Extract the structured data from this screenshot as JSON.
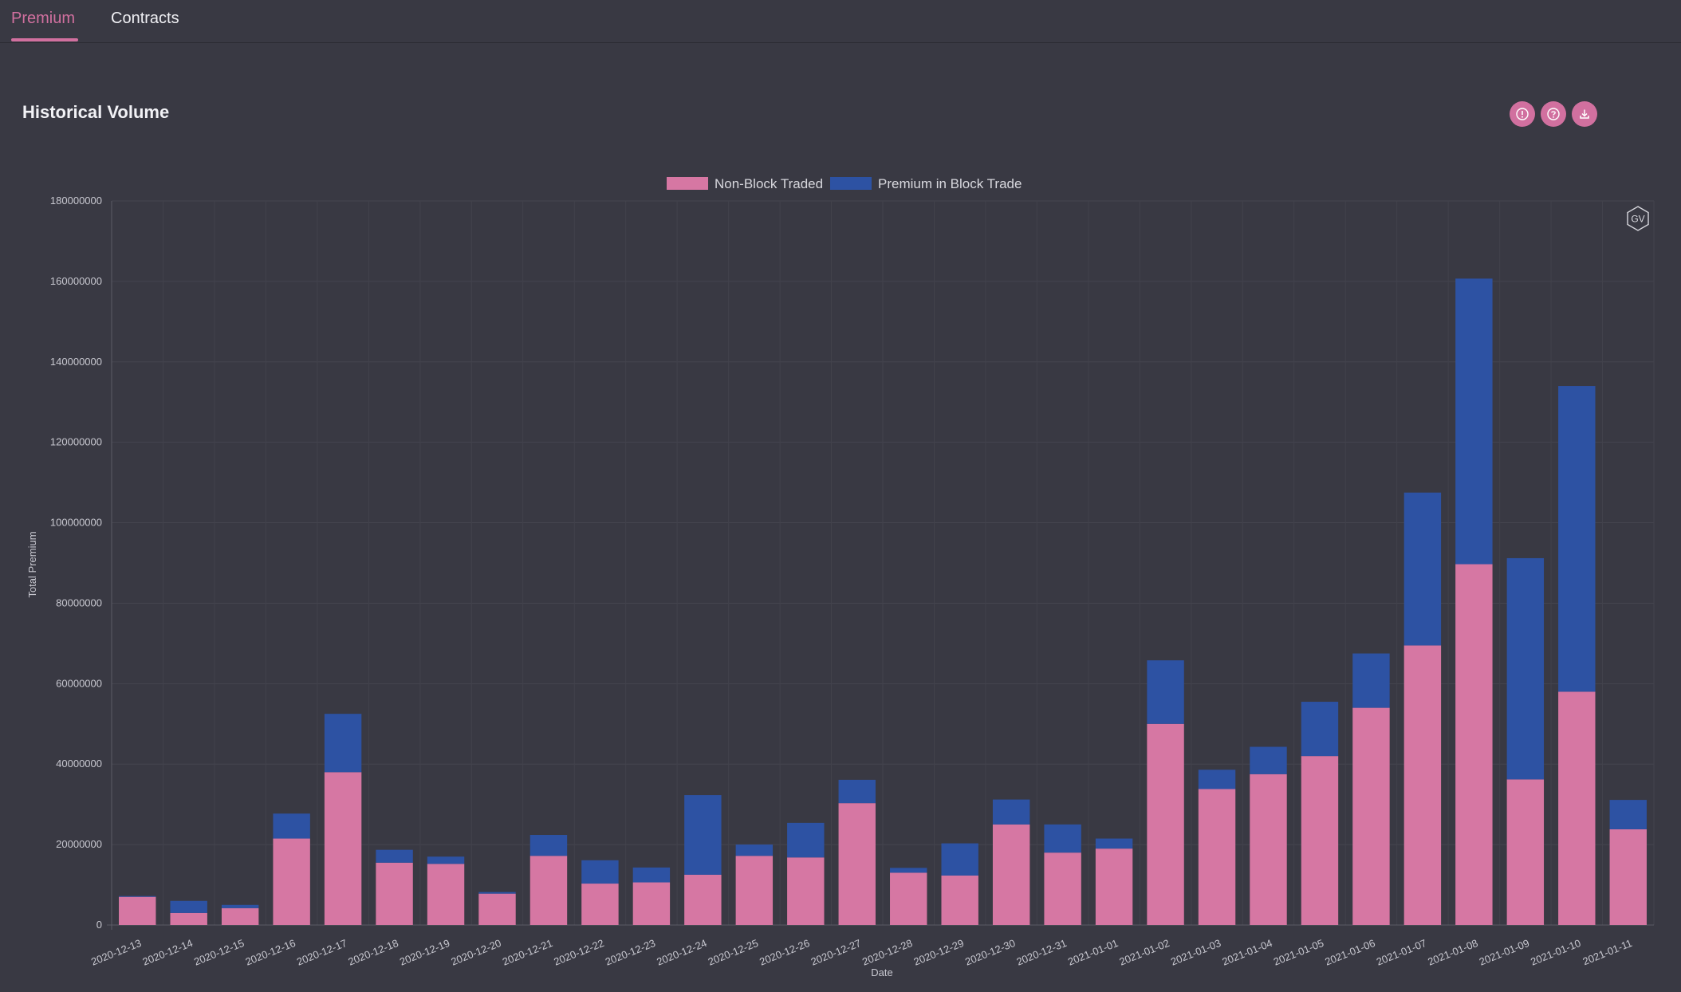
{
  "tabs": [
    {
      "label": "Premium",
      "active": true
    },
    {
      "label": "Contracts",
      "active": false
    }
  ],
  "panel": {
    "title": "Historical Volume",
    "icons": [
      "info-icon",
      "help-icon",
      "download-icon"
    ],
    "badge": "GV"
  },
  "colors": {
    "background": "#393943",
    "accent": "#d1709f",
    "non_block": "#d677a3",
    "block": "#2d52a3"
  },
  "chart_data": {
    "type": "bar",
    "stacked": true,
    "xlabel": "Date",
    "ylabel": "Total Premium",
    "ylim": [
      0,
      180000000
    ],
    "yticks": [
      0,
      20000000,
      40000000,
      60000000,
      80000000,
      100000000,
      120000000,
      140000000,
      160000000,
      180000000
    ],
    "grid": true,
    "legend_position": "top-center",
    "categories": [
      "2020-12-13",
      "2020-12-14",
      "2020-12-15",
      "2020-12-16",
      "2020-12-17",
      "2020-12-18",
      "2020-12-19",
      "2020-12-20",
      "2020-12-21",
      "2020-12-22",
      "2020-12-23",
      "2020-12-24",
      "2020-12-25",
      "2020-12-26",
      "2020-12-27",
      "2020-12-28",
      "2020-12-29",
      "2020-12-30",
      "2020-12-31",
      "2021-01-01",
      "2021-01-02",
      "2021-01-03",
      "2021-01-04",
      "2021-01-05",
      "2021-01-06",
      "2021-01-07",
      "2021-01-08",
      "2021-01-09",
      "2021-01-10",
      "2021-01-11"
    ],
    "series": [
      {
        "name": "Non-Block Traded",
        "color": "#d677a3",
        "values": [
          7000000,
          3000000,
          4200000,
          21500000,
          38000000,
          15500000,
          15200000,
          7800000,
          17200000,
          10300000,
          10600000,
          12500000,
          17200000,
          16800000,
          30300000,
          13000000,
          12300000,
          25000000,
          18000000,
          19000000,
          50000000,
          33800000,
          37500000,
          42000000,
          54000000,
          69500000,
          89700000,
          36200000,
          58000000,
          23800000
        ]
      },
      {
        "name": "Premium in Block Trade",
        "color": "#2d52a3",
        "values": [
          200000,
          3000000,
          800000,
          6200000,
          14500000,
          3200000,
          1800000,
          400000,
          5200000,
          5800000,
          3700000,
          19800000,
          2800000,
          8600000,
          5800000,
          1200000,
          8000000,
          6200000,
          7000000,
          2500000,
          15800000,
          4800000,
          6800000,
          13500000,
          13500000,
          38000000,
          71000000,
          55000000,
          76000000,
          7300000
        ]
      }
    ]
  }
}
